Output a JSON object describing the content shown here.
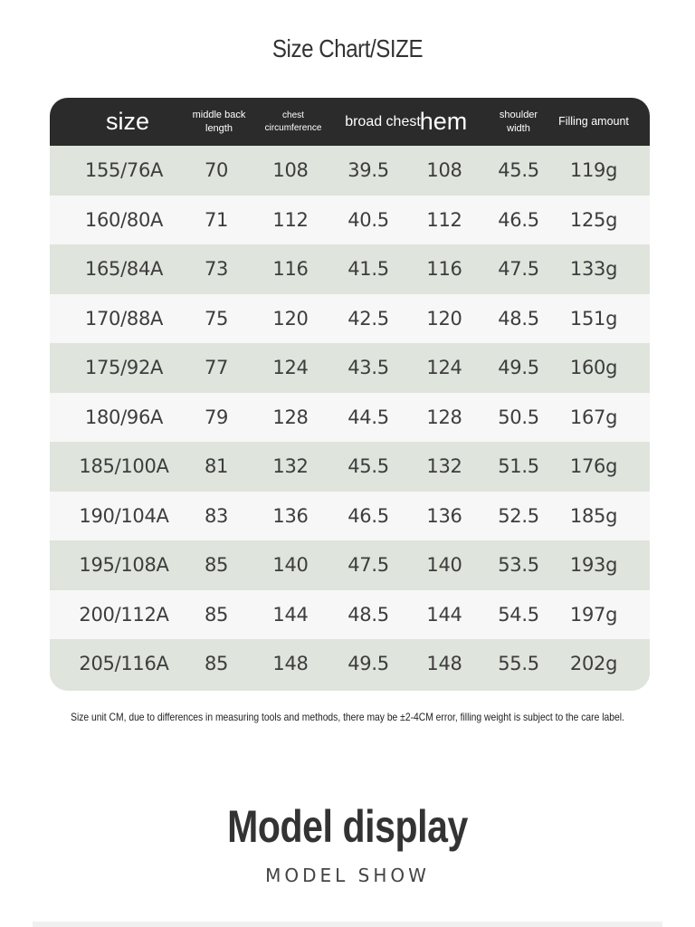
{
  "title": "Size Chart/SIZE",
  "table": {
    "headers": [
      "size",
      "middle back\nlength",
      "chest\ncircumference",
      "broad chest",
      "hem",
      "shoulder\nwidth",
      "Filling amount"
    ],
    "rows": [
      [
        "155/76A",
        "70",
        "108",
        "39.5",
        "108",
        "45.5",
        "119g"
      ],
      [
        "160/80A",
        "71",
        "112",
        "40.5",
        "112",
        "46.5",
        "125g"
      ],
      [
        "165/84A",
        "73",
        "116",
        "41.5",
        "116",
        "47.5",
        "133g"
      ],
      [
        "170/88A",
        "75",
        "120",
        "42.5",
        "120",
        "48.5",
        "151g"
      ],
      [
        "175/92A",
        "77",
        "124",
        "43.5",
        "124",
        "49.5",
        "160g"
      ],
      [
        "180/96A",
        "79",
        "128",
        "44.5",
        "128",
        "50.5",
        "167g"
      ],
      [
        "185/100A",
        "81",
        "132",
        "45.5",
        "132",
        "51.5",
        "176g"
      ],
      [
        "190/104A",
        "83",
        "136",
        "46.5",
        "136",
        "52.5",
        "185g"
      ],
      [
        "195/108A",
        "85",
        "140",
        "47.5",
        "140",
        "53.5",
        "193g"
      ],
      [
        "200/112A",
        "85",
        "144",
        "48.5",
        "144",
        "54.5",
        "197g"
      ],
      [
        "205/116A",
        "85",
        "148",
        "49.5",
        "148",
        "55.5",
        "202g"
      ]
    ]
  },
  "note": "Size unit CM, due to differences in measuring tools and methods, there may be ±2-4CM error, filling weight is subject to the care label.",
  "model": {
    "title": "Model display",
    "subtitle": "MODEL SHOW"
  }
}
